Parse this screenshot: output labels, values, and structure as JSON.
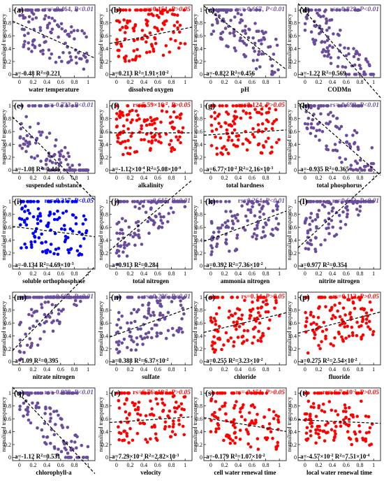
{
  "figure": {
    "ylabel": "normalized transparency",
    "colors": {
      "significant": "#6a4c9c",
      "not_significant": "#ff0000",
      "blue": "#0000ff"
    }
  },
  "chart_data": [
    {
      "type": "scatter",
      "panel": "(a)",
      "xlabel": "water temperature",
      "rs": "rs=-0.464,",
      "p": "P<0.01",
      "color": "#6a4c9c",
      "fit_a": "a=-0.48",
      "fit_r2": "R",
      "fit_r2_val": "=0.221",
      "fit_r2_exp": "",
      "intercept": 0.78,
      "slope": -0.48,
      "xlim": [
        -0.1,
        1.1
      ],
      "ylim": [
        -0.05,
        1.08
      ],
      "xticks": [
        0,
        0.2,
        0.4,
        0.6,
        0.8,
        1
      ],
      "yticks": [
        0,
        0.2,
        0.4,
        0.6,
        0.8,
        1
      ],
      "legend": "top-right"
    },
    {
      "type": "scatter",
      "panel": "(b)",
      "xlabel": "dissolved oxygen",
      "rs": "rs=0.151,",
      "p": "P>0.05",
      "color": "#ff0000",
      "fit_a": "a=0.213",
      "fit_r2": "R",
      "fit_r2_val": "=1.91×10",
      "fit_r2_exp": "-2",
      "intercept": 0.5,
      "slope": 0.213,
      "xlim": [
        -0.1,
        1.1
      ],
      "ylim": [
        -0.05,
        1.08
      ],
      "xticks": [
        0,
        0.2,
        0.4,
        0.6,
        0.8,
        1
      ],
      "yticks": [
        0,
        0.2,
        0.4,
        0.6,
        0.8,
        1
      ],
      "legend": "top-right"
    },
    {
      "type": "scatter",
      "panel": "(c)",
      "xlabel": "pH",
      "rs": "rs=-0.667,",
      "p": "P<0.01",
      "color": "#6a4c9c",
      "fit_a": "a=-0.822",
      "fit_r2": "R",
      "fit_r2_val": "=0.456",
      "fit_r2_exp": "",
      "intercept": 0.98,
      "slope": -0.822,
      "xlim": [
        -0.1,
        1.1
      ],
      "ylim": [
        -0.05,
        1.08
      ],
      "xticks": [
        0,
        0.2,
        0.4,
        0.6,
        0.8,
        1
      ],
      "yticks": [
        0,
        0.2,
        0.4,
        0.6,
        0.8,
        1
      ],
      "legend": "top-right"
    },
    {
      "type": "scatter",
      "panel": "(d)",
      "xlabel": "CODMn",
      "rs": "rs=-0.828,",
      "p": "P<0.01",
      "color": "#6a4c9c",
      "fit_a": "a=-1.22",
      "fit_r2": "R",
      "fit_r2_val": "=0.569",
      "fit_r2_exp": "",
      "intercept": 0.98,
      "slope": -1.22,
      "xlim": [
        -0.1,
        1.1
      ],
      "ylim": [
        -0.05,
        1.08
      ],
      "xticks": [
        0,
        0.2,
        0.4,
        0.6,
        0.8,
        1
      ],
      "yticks": [
        0,
        0.2,
        0.4,
        0.6,
        0.8,
        1
      ],
      "legend": "top-right"
    },
    {
      "type": "scatter",
      "panel": "(e)",
      "xlabel": "suspended substance",
      "rs": "rs=-0.733,",
      "p": "P<0.01",
      "color": "#6a4c9c",
      "fit_a": "a=-1.08",
      "fit_r2": "R",
      "fit_r2_val": "=0.446",
      "fit_r2_exp": "",
      "intercept": 0.72,
      "slope": -1.08,
      "xlim": [
        -0.1,
        1.1
      ],
      "ylim": [
        -0.05,
        1.08
      ],
      "xticks": [
        0,
        0.2,
        0.4,
        0.6,
        0.8,
        1
      ],
      "yticks": [
        0,
        0.2,
        0.4,
        0.6,
        0.8,
        1
      ],
      "legend": "top-right"
    },
    {
      "type": "scatter",
      "panel": "(f)",
      "xlabel": "alkalinity",
      "rs": "rs=5.59×10",
      "rs_exp": "-2",
      "p": "P>0.05",
      "color": "#ff0000",
      "fit_a": "a=-1.12×10",
      "fit_a_exp": "-4",
      "fit_r2": "R",
      "fit_r2_val": "=5.08×10",
      "fit_r2_exp": "-9",
      "intercept": 0.58,
      "slope": -0.0001,
      "xlim": [
        -0.1,
        1.1
      ],
      "ylim": [
        -0.05,
        1.08
      ],
      "xticks": [
        0,
        0.2,
        0.4,
        0.6,
        0.8,
        1
      ],
      "yticks": [
        0,
        0.2,
        0.4,
        0.6,
        0.8,
        1
      ],
      "legend": "top-right"
    },
    {
      "type": "scatter",
      "panel": "(g)",
      "xlabel": "total hardness",
      "rs": "rs=0.124,",
      "p": "P>0.05",
      "color": "#ff0000",
      "fit_a": "a=6.77×10",
      "fit_a_exp": "-2",
      "fit_r2": "R",
      "fit_r2_val": "=2.16×10",
      "fit_r2_exp": "-3",
      "intercept": 0.55,
      "slope": 0.0677,
      "xlim": [
        -0.1,
        1.1
      ],
      "ylim": [
        -0.05,
        1.08
      ],
      "xticks": [
        0,
        0.2,
        0.4,
        0.6,
        0.8,
        1
      ],
      "yticks": [
        0,
        0.2,
        0.4,
        0.6,
        0.8,
        1
      ],
      "legend": "top-right"
    },
    {
      "type": "scatter",
      "panel": "(h)",
      "xlabel": "total phosphorus",
      "rs": "rs=-0.699,",
      "p": "P<0.01",
      "color": "#6a4c9c",
      "fit_a": "a=-0.935",
      "fit_r2": "R",
      "fit_r2_val": "=0.365",
      "fit_r2_exp": "",
      "intercept": 0.95,
      "slope": -0.935,
      "xlim": [
        -0.1,
        1.1
      ],
      "ylim": [
        -0.05,
        1.08
      ],
      "xticks": [
        0,
        0.2,
        0.4,
        0.6,
        0.8,
        1
      ],
      "yticks": [
        0,
        0.2,
        0.4,
        0.6,
        0.8,
        1
      ],
      "legend": "top-right"
    },
    {
      "type": "scatter",
      "panel": "(i)",
      "xlabel": "soluble orthophosphate",
      "rs": "rs=-0.217,",
      "p": "P<0.05",
      "color": "#0000ff",
      "fit_a": "a=-0.134",
      "fit_r2": "R",
      "fit_r2_val": "=4.69×10",
      "fit_r2_exp": "-3",
      "intercept": 0.6,
      "slope": -0.134,
      "xlim": [
        -0.1,
        1.1
      ],
      "ylim": [
        -0.05,
        1.08
      ],
      "xticks": [
        0,
        0.2,
        0.4,
        0.6,
        0.8,
        1
      ],
      "yticks": [
        0,
        0.2,
        0.4,
        0.6,
        0.8,
        1
      ],
      "legend": "top-right"
    },
    {
      "type": "scatter",
      "panel": "(j)",
      "xlabel": "total nitrogen",
      "rs": "rs=0.615,",
      "p": "P<0.01",
      "color": "#6a4c9c",
      "fit_a": "a=0.913",
      "fit_r2": "R",
      "fit_r2_val": "=0.284",
      "fit_r2_exp": "",
      "intercept": 0.33,
      "slope": 0.913,
      "xlim": [
        -0.1,
        1.1
      ],
      "ylim": [
        -0.05,
        1.08
      ],
      "xticks": [
        0,
        0.2,
        0.4,
        0.6,
        0.8,
        1
      ],
      "yticks": [
        0,
        0.2,
        0.4,
        0.6,
        0.8,
        1
      ],
      "legend": "top-right"
    },
    {
      "type": "scatter",
      "panel": "(k)",
      "xlabel": "ammonia nitrogen",
      "rs": "rs=0.264,",
      "p": "P<0.01",
      "color": "#6a4c9c",
      "fit_a": "a=0.392",
      "fit_r2": "R",
      "fit_r2_val": "=7.36×10",
      "fit_r2_exp": "-2",
      "intercept": 0.42,
      "slope": 0.392,
      "xlim": [
        -0.1,
        1.1
      ],
      "ylim": [
        -0.05,
        1.08
      ],
      "xticks": [
        0,
        0.2,
        0.4,
        0.6,
        0.8,
        1
      ],
      "yticks": [
        0,
        0.2,
        0.4,
        0.6,
        0.8,
        1
      ],
      "legend": "top-right"
    },
    {
      "type": "scatter",
      "panel": "(l)",
      "xlabel": "nitrite nitrogen",
      "rs": "rs=0.643,",
      "p": "P<0.01",
      "color": "#6a4c9c",
      "fit_a": "a=0.977",
      "fit_r2": "R",
      "fit_r2_val": "=0.354",
      "fit_r2_exp": "",
      "intercept": 0.38,
      "slope": 0.977,
      "xlim": [
        -0.1,
        1.1
      ],
      "ylim": [
        -0.05,
        1.08
      ],
      "xticks": [
        0,
        0.2,
        0.4,
        0.6,
        0.8,
        1
      ],
      "yticks": [
        0,
        0.2,
        0.4,
        0.6,
        0.8,
        1
      ],
      "legend": "top-right"
    },
    {
      "type": "scatter",
      "panel": "(m)",
      "xlabel": "nitrate nitrogen",
      "rs": "rs=0.661,",
      "p": "P<0.01",
      "color": "#6a4c9c",
      "fit_a": "a=1.09",
      "fit_r2": "R",
      "fit_r2_val": "=0.395",
      "fit_r2_exp": "",
      "intercept": 0.28,
      "slope": 1.09,
      "xlim": [
        -0.1,
        1.1
      ],
      "ylim": [
        -0.05,
        1.08
      ],
      "xticks": [
        0,
        0.2,
        0.4,
        0.6,
        0.8,
        1
      ],
      "yticks": [
        0,
        0.2,
        0.4,
        0.6,
        0.8,
        1
      ],
      "legend": "top-right"
    },
    {
      "type": "scatter",
      "panel": "(n)",
      "xlabel": "sulfate",
      "rs": "rs=0.296,",
      "p": "P<0.01",
      "color": "#6a4c9c",
      "fit_a": "a=0.388",
      "fit_r2": "R",
      "fit_r2_val": "=6.37×10",
      "fit_r2_exp": "-2",
      "intercept": 0.42,
      "slope": 0.388,
      "xlim": [
        -0.1,
        1.1
      ],
      "ylim": [
        -0.05,
        1.08
      ],
      "xticks": [
        0,
        0.2,
        0.4,
        0.6,
        0.8,
        1
      ],
      "yticks": [
        0,
        0.2,
        0.4,
        0.6,
        0.8,
        1
      ],
      "legend": "top-right"
    },
    {
      "type": "scatter",
      "panel": "(o)",
      "xlabel": "chloride",
      "rs": "rs=0.14,",
      "p": "P>0.05",
      "color": "#ff0000",
      "fit_a": "a=0.255",
      "fit_r2": "R",
      "fit_r2_val": "=3.23×10",
      "fit_r2_exp": "-2",
      "intercept": 0.48,
      "slope": 0.255,
      "xlim": [
        -0.1,
        1.1
      ],
      "ylim": [
        -0.05,
        1.08
      ],
      "xticks": [
        0,
        0.2,
        0.4,
        0.6,
        0.8,
        1
      ],
      "yticks": [
        0,
        0.2,
        0.4,
        0.6,
        0.8,
        1
      ],
      "legend": "top-right"
    },
    {
      "type": "scatter",
      "panel": "(p)",
      "xlabel": "fluoride",
      "rs": "rs=0.112,",
      "p": "P>0.05",
      "color": "#ff0000",
      "fit_a": "a=0.275",
      "fit_r2": "R",
      "fit_r2_val": "=2.54×10",
      "fit_r2_exp": "-2",
      "intercept": 0.47,
      "slope": 0.275,
      "xlim": [
        -0.1,
        1.1
      ],
      "ylim": [
        -0.05,
        1.08
      ],
      "xticks": [
        0,
        0.2,
        0.4,
        0.6,
        0.8,
        1
      ],
      "yticks": [
        0,
        0.2,
        0.4,
        0.6,
        0.8,
        1
      ],
      "legend": "top-right"
    },
    {
      "type": "scatter",
      "panel": "(q)",
      "xlabel": "chlorophyll-a",
      "rs": "rs=-0.809,",
      "p": "P<0.01",
      "color": "#6a4c9c",
      "fit_a": "a=-1.12",
      "fit_r2": "R",
      "fit_r2_val": "=0.531",
      "fit_r2_exp": "",
      "intercept": 0.98,
      "slope": -1.12,
      "xlim": [
        -0.1,
        1.1
      ],
      "ylim": [
        -0.05,
        1.08
      ],
      "xticks": [
        0,
        0.2,
        0.4,
        0.6,
        0.8,
        1
      ],
      "yticks": [
        0,
        0.2,
        0.4,
        0.6,
        0.8,
        1
      ],
      "legend": "top-right"
    },
    {
      "type": "scatter",
      "panel": "(r)",
      "xlabel": "velocity",
      "rs": "rs=6.76×10",
      "rs_exp": "-2",
      "p": "P>0.05",
      "color": "#ff0000",
      "fit_a": "a=7.29×10",
      "fit_a_exp": "-2",
      "fit_r2": "R",
      "fit_r2_val": "=2.82×10",
      "fit_r2_exp": "-3",
      "intercept": 0.55,
      "slope": 0.0729,
      "xlim": [
        -0.1,
        1.1
      ],
      "ylim": [
        -0.05,
        1.08
      ],
      "xticks": [
        0,
        0.2,
        0.4,
        0.6,
        0.8,
        1
      ],
      "yticks": [
        0,
        0.2,
        0.4,
        0.6,
        0.8,
        1
      ],
      "legend": "top-right"
    },
    {
      "type": "scatter",
      "panel": "(s)",
      "xlabel": "cell water renewal time",
      "rs": "rs=-0.151,",
      "p": "P>0.05",
      "color": "#ff0000",
      "fit_a": "a=-0.179",
      "fit_r2": "R",
      "fit_r2_val": "=1.07×10",
      "fit_r2_exp": "-2",
      "intercept": 0.6,
      "slope": -0.179,
      "xlim": [
        -0.1,
        1.1
      ],
      "ylim": [
        -0.05,
        1.08
      ],
      "xticks": [
        0,
        0.2,
        0.4,
        0.6,
        0.8,
        1
      ],
      "yticks": [
        0,
        0.2,
        0.4,
        0.6,
        0.8,
        1
      ],
      "legend": "top-right"
    },
    {
      "type": "scatter",
      "panel": "(t)",
      "xlabel": "local water renewal time",
      "rs": "rs=-6.7×10",
      "rs_exp": "-2",
      "p": "P>0.05",
      "color": "#ff0000",
      "fit_a": "a=-4.57×10",
      "fit_a_exp": "-2",
      "fit_r2": "R",
      "fit_r2_val": "=7.51×10",
      "fit_r2_exp": "-4",
      "intercept": 0.58,
      "slope": -0.0457,
      "xlim": [
        -0.1,
        1.1
      ],
      "ylim": [
        -0.05,
        1.08
      ],
      "xticks": [
        0,
        0.2,
        0.4,
        0.6,
        0.8,
        1
      ],
      "yticks": [
        0,
        0.2,
        0.4,
        0.6,
        0.8,
        1
      ],
      "legend": "top-right"
    }
  ]
}
